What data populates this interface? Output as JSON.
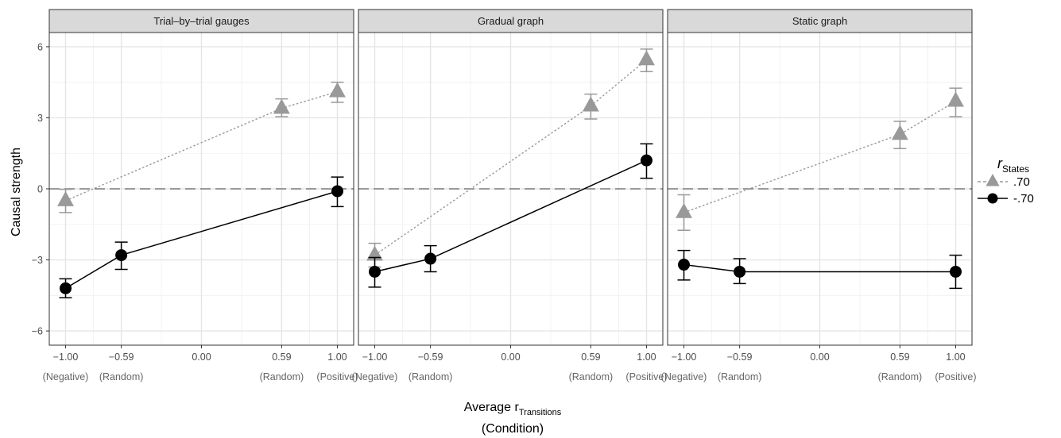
{
  "chart_data": {
    "type": "line",
    "ylabel": "Causal strength",
    "xlabel": {
      "main": "Average r",
      "subscript": "Transitions",
      "line2": "(Condition)"
    },
    "x_ticks": [
      -1.0,
      -0.59,
      0.0,
      0.59,
      1.0
    ],
    "x_tick_labels": [
      "−1.00",
      "−0.59",
      "0.00",
      "0.59",
      "1.00"
    ],
    "condition_labels": [
      {
        "x": -1.0,
        "label": "(Negative)"
      },
      {
        "x": -0.59,
        "label": "(Random)"
      },
      {
        "x": 0.59,
        "label": "(Random)"
      },
      {
        "x": 1.0,
        "label": "(Positive)"
      }
    ],
    "y_ticks": [
      6,
      3,
      0,
      -3,
      -6
    ],
    "y_tick_labels": [
      "6",
      "3",
      "0",
      "−3",
      "−6"
    ],
    "xlim": [
      -1.12,
      1.12
    ],
    "ylim": [
      -6.6,
      6.6
    ],
    "reference_line_y": 0,
    "legend": {
      "title_main": "r",
      "title_subscript": "States",
      "placement": "right"
    },
    "series_style": [
      {
        "key": "pos",
        "label": ".70",
        "color": "#999999",
        "marker": "triangle",
        "line": "dotted"
      },
      {
        "key": "neg",
        "label": "-.70",
        "color": "#000000",
        "marker": "circle",
        "line": "solid"
      }
    ],
    "panels": [
      {
        "title": "Trial–by–trial gauges",
        "series": [
          {
            "key": "pos",
            "name": ".70",
            "points": [
              {
                "x": -1.0,
                "y": -0.5,
                "lo": -1.0,
                "hi": -0.02
              },
              {
                "x": 0.59,
                "y": 3.4,
                "lo": 3.05,
                "hi": 3.8
              },
              {
                "x": 1.0,
                "y": 4.1,
                "lo": 3.65,
                "hi": 4.5
              }
            ]
          },
          {
            "key": "neg",
            "name": "-.70",
            "points": [
              {
                "x": -1.0,
                "y": -4.2,
                "lo": -4.6,
                "hi": -3.8
              },
              {
                "x": -0.59,
                "y": -2.8,
                "lo": -3.4,
                "hi": -2.25
              },
              {
                "x": 1.0,
                "y": -0.1,
                "lo": -0.75,
                "hi": 0.5
              }
            ]
          }
        ]
      },
      {
        "title": "Gradual graph",
        "series": [
          {
            "key": "pos",
            "name": ".70",
            "points": [
              {
                "x": -1.0,
                "y": -2.8,
                "lo": -3.3,
                "hi": -2.3
              },
              {
                "x": 0.59,
                "y": 3.5,
                "lo": 2.95,
                "hi": 4.0
              },
              {
                "x": 1.0,
                "y": 5.45,
                "lo": 4.95,
                "hi": 5.9
              }
            ]
          },
          {
            "key": "neg",
            "name": "-.70",
            "points": [
              {
                "x": -1.0,
                "y": -3.5,
                "lo": -4.15,
                "hi": -2.9
              },
              {
                "x": -0.59,
                "y": -2.95,
                "lo": -3.5,
                "hi": -2.4
              },
              {
                "x": 1.0,
                "y": 1.2,
                "lo": 0.45,
                "hi": 1.9
              }
            ]
          }
        ]
      },
      {
        "title": "Static graph",
        "series": [
          {
            "key": "pos",
            "name": ".70",
            "points": [
              {
                "x": -1.0,
                "y": -1.0,
                "lo": -1.75,
                "hi": -0.25
              },
              {
                "x": 0.59,
                "y": 2.3,
                "lo": 1.7,
                "hi": 2.85
              },
              {
                "x": 1.0,
                "y": 3.7,
                "lo": 3.05,
                "hi": 4.25
              }
            ]
          },
          {
            "key": "neg",
            "name": "-.70",
            "points": [
              {
                "x": -1.0,
                "y": -3.2,
                "lo": -3.85,
                "hi": -2.6
              },
              {
                "x": -0.59,
                "y": -3.5,
                "lo": -4.0,
                "hi": -2.95
              },
              {
                "x": 1.0,
                "y": -3.5,
                "lo": -4.2,
                "hi": -2.8
              }
            ]
          }
        ]
      }
    ]
  }
}
